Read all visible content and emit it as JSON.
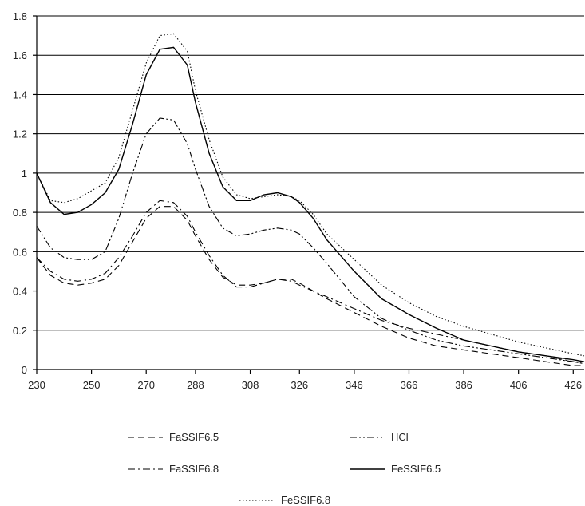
{
  "chart_data": {
    "type": "line",
    "title": "",
    "xlabel": "",
    "ylabel": "",
    "x": [
      230,
      235,
      240,
      245,
      250,
      255,
      260,
      265,
      270,
      275,
      280,
      285,
      288,
      293,
      298,
      303,
      308,
      313,
      318,
      323,
      326,
      331,
      336,
      346,
      356,
      366,
      376,
      386,
      396,
      406,
      416,
      426,
      430
    ],
    "x_ticks": [
      230,
      250,
      270,
      288,
      308,
      326,
      346,
      366,
      386,
      406,
      426
    ],
    "y_ticks": [
      "0",
      "0.2",
      "0.4",
      "0.6",
      "0.8",
      "1",
      "1.2",
      "1.4",
      "1.6",
      "1.8"
    ],
    "xlim": [
      230,
      430
    ],
    "ylim": [
      0,
      1.8
    ],
    "grid": "horizontal",
    "legend_position": "bottom",
    "series": [
      {
        "name": "FaSSIF6.5",
        "dash": "dash",
        "values": [
          0.57,
          0.48,
          0.44,
          0.43,
          0.44,
          0.46,
          0.53,
          0.65,
          0.77,
          0.83,
          0.83,
          0.76,
          0.68,
          0.56,
          0.47,
          0.43,
          0.43,
          0.44,
          0.46,
          0.46,
          0.44,
          0.4,
          0.36,
          0.29,
          0.22,
          0.16,
          0.12,
          0.1,
          0.08,
          0.06,
          0.04,
          0.02,
          0.02
        ]
      },
      {
        "name": "FaSSIF6.8",
        "dash": "dashdot",
        "values": [
          0.57,
          0.5,
          0.46,
          0.45,
          0.46,
          0.49,
          0.57,
          0.68,
          0.8,
          0.86,
          0.85,
          0.78,
          0.7,
          0.58,
          0.48,
          0.42,
          0.42,
          0.44,
          0.46,
          0.45,
          0.43,
          0.4,
          0.37,
          0.31,
          0.25,
          0.21,
          0.18,
          0.15,
          0.12,
          0.09,
          0.07,
          0.04,
          0.03
        ]
      },
      {
        "name": "HCl",
        "dash": "dashdotdot",
        "values": [
          0.73,
          0.62,
          0.57,
          0.56,
          0.56,
          0.6,
          0.77,
          1.0,
          1.2,
          1.28,
          1.27,
          1.15,
          1.02,
          0.83,
          0.72,
          0.68,
          0.69,
          0.71,
          0.72,
          0.71,
          0.69,
          0.62,
          0.54,
          0.37,
          0.26,
          0.2,
          0.15,
          0.12,
          0.1,
          0.08,
          0.06,
          0.04,
          0.03
        ]
      },
      {
        "name": "FeSSIF6.5",
        "dash": "solid",
        "values": [
          1.0,
          0.85,
          0.79,
          0.8,
          0.84,
          0.9,
          1.02,
          1.25,
          1.5,
          1.63,
          1.64,
          1.55,
          1.36,
          1.1,
          0.93,
          0.86,
          0.86,
          0.89,
          0.9,
          0.88,
          0.85,
          0.77,
          0.66,
          0.5,
          0.36,
          0.28,
          0.21,
          0.15,
          0.12,
          0.09,
          0.07,
          0.05,
          0.04
        ]
      },
      {
        "name": "FeSSIF6.8",
        "dash": "dot",
        "values": [
          1.0,
          0.86,
          0.85,
          0.87,
          0.91,
          0.95,
          1.08,
          1.32,
          1.56,
          1.7,
          1.71,
          1.62,
          1.42,
          1.17,
          0.98,
          0.89,
          0.87,
          0.88,
          0.89,
          0.88,
          0.86,
          0.79,
          0.69,
          0.56,
          0.43,
          0.34,
          0.27,
          0.22,
          0.18,
          0.14,
          0.11,
          0.08,
          0.07
        ]
      }
    ]
  }
}
